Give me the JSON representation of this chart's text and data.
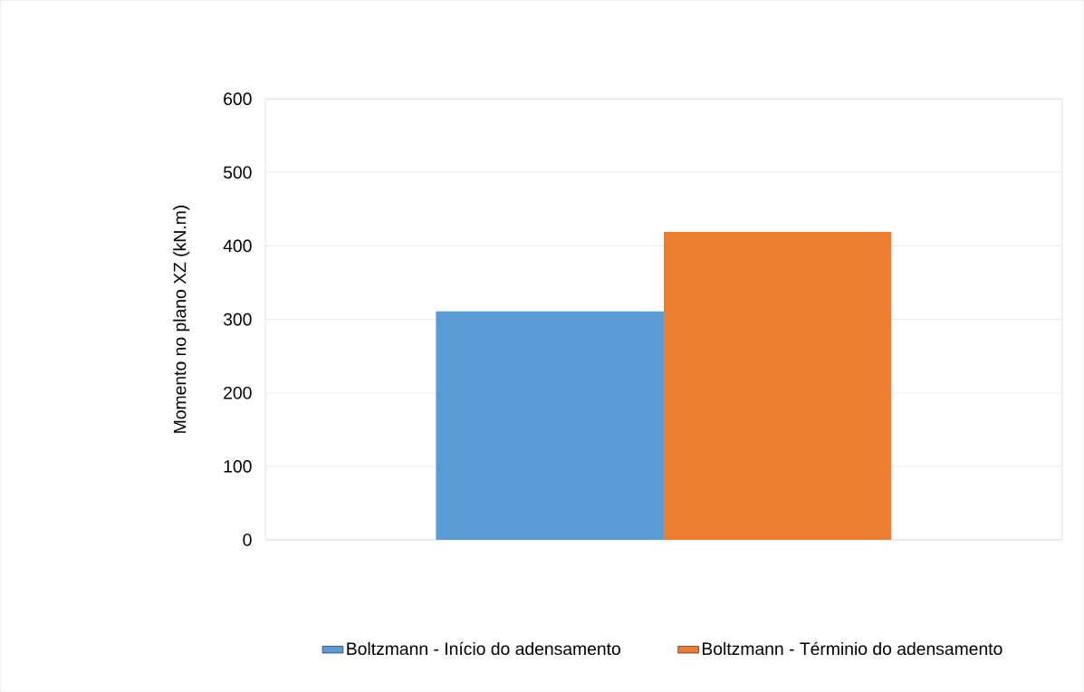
{
  "chart_data": {
    "type": "bar",
    "ylabel": "Momento no plano XZ (kN.m)",
    "categories": [
      null
    ],
    "series": [
      {
        "name": "Boltzmann - Início do adensamento",
        "color": "#5b9bd5",
        "values": [
          311
        ]
      },
      {
        "name": "Boltzmann - Términio do adensamento",
        "color": "#ed7d31",
        "values": [
          419
        ]
      }
    ],
    "ylim": [
      0,
      600
    ],
    "yticks": [
      0,
      100,
      200,
      300,
      400,
      500,
      600
    ],
    "grid": "y",
    "legend": "bottom"
  }
}
